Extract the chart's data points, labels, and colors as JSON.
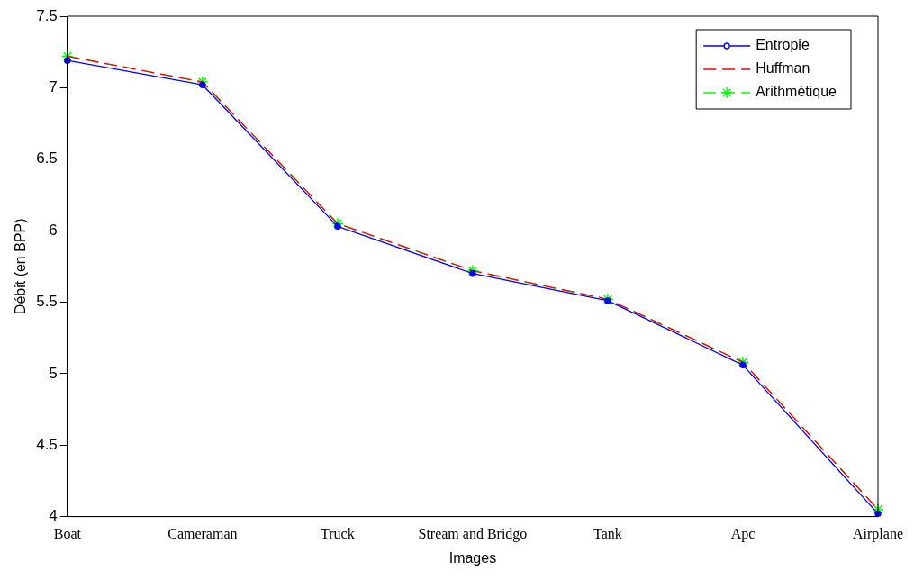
{
  "chart_data": {
    "type": "line",
    "xlabel": "Images",
    "ylabel": "Débit (en BPP)",
    "categories": [
      "Boat",
      "Cameraman",
      "Truck",
      "Stream and Bridgo",
      "Tank",
      "Apc",
      "Airplane"
    ],
    "ylim": [
      4,
      7.5
    ],
    "yticks": [
      4,
      4.5,
      5,
      5.5,
      6,
      6.5,
      7,
      7.5
    ],
    "grid": false,
    "legend": "top right",
    "series": [
      {
        "name": "Entropie",
        "color": "#0000ff",
        "marker": "circle",
        "line_style": "solid",
        "values": [
          7.19,
          7.02,
          6.03,
          5.7,
          5.51,
          5.06,
          4.02
        ]
      },
      {
        "name": "Huffman",
        "color": "#ff0000",
        "marker": "none",
        "line_style": "dashed",
        "values": [
          7.22,
          7.04,
          6.05,
          5.72,
          5.52,
          5.08,
          4.05
        ]
      },
      {
        "name": "Arithmétique",
        "color": "#00ff00",
        "marker": "cross",
        "line_style": "dashed",
        "values": [
          7.22,
          7.04,
          6.05,
          5.72,
          5.52,
          5.08,
          4.05
        ]
      }
    ]
  }
}
